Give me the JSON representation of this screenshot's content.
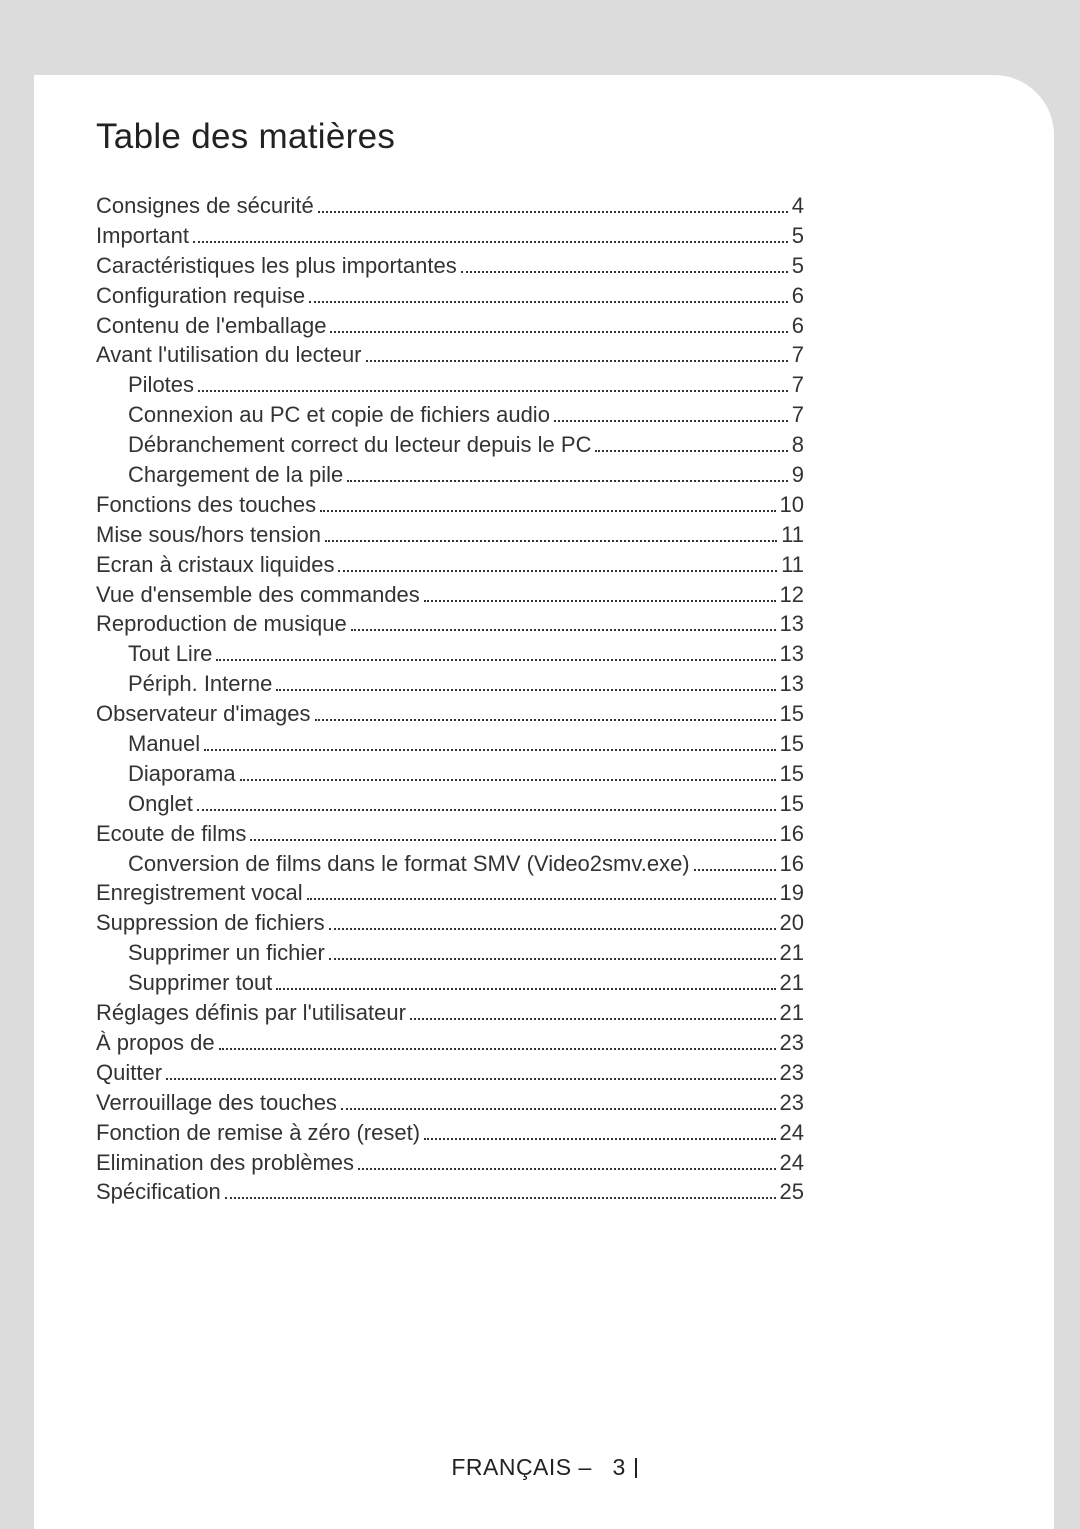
{
  "title": "Table des matières",
  "footer": {
    "language": "FRANÇAIS",
    "separator": "–",
    "page_number": "3"
  },
  "entries": [
    {
      "level": 0,
      "title": "Consignes de  sécurité",
      "page": "4"
    },
    {
      "level": 0,
      "title": "Important",
      "page": "5"
    },
    {
      "level": 0,
      "title": "Caractéristiques les plus importantes",
      "page": "5"
    },
    {
      "level": 0,
      "title": "Configuration requise",
      "page": "6"
    },
    {
      "level": 0,
      "title": "Contenu de l'emballage",
      "page": "6"
    },
    {
      "level": 0,
      "title": "Avant l'utilisation du lecteur",
      "page": "7"
    },
    {
      "level": 1,
      "title": "Pilotes",
      "page": "7"
    },
    {
      "level": 1,
      "title": "Connexion au PC et copie de fichiers audio",
      "page": "7"
    },
    {
      "level": 1,
      "title": "Débranchement correct du lecteur depuis le PC",
      "page": "8"
    },
    {
      "level": 1,
      "title": "Chargement de la pile",
      "page": "9"
    },
    {
      "level": 0,
      "title": "Fonctions des touches",
      "page": "10"
    },
    {
      "level": 0,
      "title": "Mise sous/hors tension",
      "page": "11"
    },
    {
      "level": 0,
      "title": "Ecran à cristaux liquides",
      "page": "11"
    },
    {
      "level": 0,
      "title": "Vue d'ensemble des commandes",
      "page": "12"
    },
    {
      "level": 0,
      "title": "Reproduction de musique",
      "page": "13"
    },
    {
      "level": 1,
      "title": "Tout Lire",
      "page": "13"
    },
    {
      "level": 1,
      "title": "Périph. Interne",
      "page": "13"
    },
    {
      "level": 0,
      "title": "Observateur d'images",
      "page": "15"
    },
    {
      "level": 1,
      "title": "Manuel",
      "page": "15"
    },
    {
      "level": 1,
      "title": "Diaporama",
      "page": "15"
    },
    {
      "level": 1,
      "title": "Onglet",
      "page": "15"
    },
    {
      "level": 0,
      "title": "Ecoute de films",
      "page": "16"
    },
    {
      "level": 1,
      "title": "Conversion de films dans le format SMV (Video2smv.exe)",
      "page": "16"
    },
    {
      "level": 0,
      "title": "Enregistrement vocal",
      "page": "19"
    },
    {
      "level": 0,
      "title": "Suppression de fichiers",
      "page": "20"
    },
    {
      "level": 1,
      "title": "Supprimer un fichier",
      "page": "21"
    },
    {
      "level": 1,
      "title": "Supprimer tout",
      "page": "21"
    },
    {
      "level": 0,
      "title": "Réglages définis par l'utilisateur",
      "page": "21"
    },
    {
      "level": 0,
      "title": "À propos de",
      "page": "23"
    },
    {
      "level": 0,
      "title": "Quitter",
      "page": "23"
    },
    {
      "level": 0,
      "title": "Verrouillage des touches",
      "page": "23"
    },
    {
      "level": 0,
      "title": "Fonction de remise à zéro (reset)",
      "page": "24"
    },
    {
      "level": 0,
      "title": "Elimination des problèmes",
      "page": "24"
    },
    {
      "level": 0,
      "title": "Spécification",
      "page": "25"
    }
  ]
}
